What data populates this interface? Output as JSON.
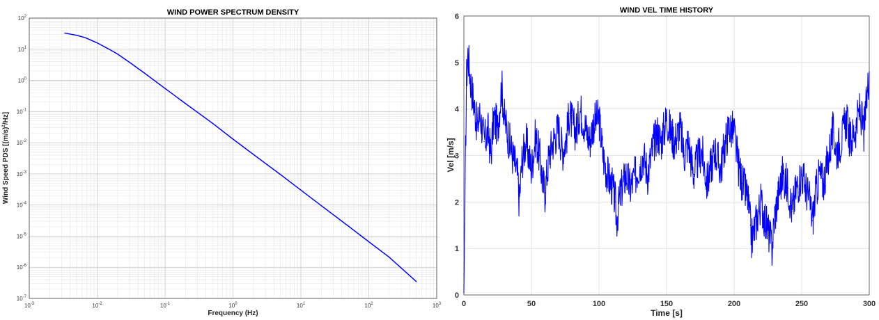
{
  "chart_data": [
    {
      "type": "line",
      "title": "WIND POWER SPECTRUM DENSITY",
      "xlabel": "Frequency (Hz)",
      "ylabel": "Wind Speed PDS [(m/s)^2/Hz]",
      "ylabel_parts": [
        "Wind Speed PDS [(m/s)",
        "2",
        "/Hz]"
      ],
      "xscale": "log",
      "yscale": "log",
      "xlim": [
        0.001,
        1000
      ],
      "ylim": [
        1e-07,
        100
      ],
      "grid": true,
      "minor_grid": true,
      "xtick_exponents": [
        -3,
        -2,
        -1,
        0,
        1,
        2,
        3
      ],
      "ytick_exponents": [
        -7,
        -6,
        -5,
        -4,
        -3,
        -2,
        -1,
        0,
        1,
        2
      ],
      "tick_base": "10",
      "color": "#0000ff",
      "series": [
        {
          "x": [
            0.00333,
            0.005,
            0.0067,
            0.01,
            0.015,
            0.02,
            0.03,
            0.05,
            0.1,
            0.2,
            0.5,
            1,
            2,
            5,
            10,
            20,
            50,
            100,
            200,
            500
          ],
          "y": [
            33,
            28,
            23.5,
            16,
            10,
            7,
            3.8,
            1.7,
            0.55,
            0.18,
            0.042,
            0.013,
            0.0042,
            0.00095,
            0.0003,
            9.5e-05,
            2.1e-05,
            6.6e-06,
            2.1e-06,
            3.5e-07
          ]
        }
      ]
    },
    {
      "type": "line",
      "title": "WIND VEL TIME HISTORY",
      "xlabel": "Time [s]",
      "ylabel": "Vel [m/s]",
      "xlim": [
        0,
        300
      ],
      "ylim": [
        0,
        6
      ],
      "xticks": [
        0,
        50,
        100,
        150,
        200,
        250,
        300
      ],
      "yticks": [
        0,
        1,
        2,
        3,
        4,
        5,
        6
      ],
      "grid": true,
      "color": "#0000ff",
      "series": [
        {
          "x": [
            0,
            1,
            2,
            3,
            5,
            8,
            10,
            12,
            15,
            18,
            20,
            22,
            25,
            28,
            30,
            33,
            36,
            38,
            40,
            41,
            43,
            46,
            50,
            53,
            56,
            58,
            60,
            63,
            66,
            70,
            73,
            76,
            78,
            80,
            83,
            86,
            90,
            93,
            96,
            100,
            103,
            106,
            110,
            112,
            113,
            116,
            120,
            123,
            126,
            130,
            133,
            136,
            140,
            143,
            146,
            150,
            153,
            156,
            160,
            163,
            166,
            170,
            173,
            176,
            180,
            183,
            186,
            190,
            193,
            196,
            200,
            203,
            206,
            210,
            212,
            213,
            215,
            218,
            220,
            223,
            226,
            228,
            230,
            233,
            236,
            240,
            243,
            246,
            250,
            253,
            256,
            258,
            260,
            263,
            266,
            270,
            273,
            276,
            280,
            283,
            286,
            290,
            293,
            296,
            300
          ],
          "y": [
            0.05,
            2.5,
            4.7,
            5.2,
            4.6,
            4.0,
            3.6,
            3.9,
            3.3,
            3.5,
            3.0,
            3.8,
            3.6,
            4.5,
            3.8,
            3.4,
            3.0,
            2.8,
            2.5,
            2.0,
            2.9,
            3.3,
            2.7,
            3.4,
            3.0,
            2.5,
            2.2,
            3.0,
            3.3,
            3.6,
            3.1,
            3.4,
            3.9,
            3.7,
            3.5,
            4.0,
            3.6,
            3.3,
            3.7,
            3.8,
            3.0,
            2.6,
            2.3,
            2.0,
            1.6,
            2.2,
            2.6,
            2.3,
            2.5,
            2.8,
            3.0,
            2.6,
            3.2,
            3.5,
            3.3,
            3.8,
            3.5,
            3.3,
            3.6,
            3.0,
            3.3,
            2.6,
            2.9,
            3.1,
            2.4,
            2.8,
            3.1,
            2.7,
            3.2,
            3.6,
            3.5,
            2.8,
            2.4,
            2.1,
            1.5,
            1.2,
            1.4,
            1.8,
            2.0,
            1.6,
            1.3,
            1.0,
            1.7,
            2.2,
            2.6,
            2.3,
            1.8,
            2.3,
            2.6,
            2.3,
            2.0,
            1.6,
            2.1,
            2.6,
            2.4,
            3.0,
            3.5,
            3.1,
            3.4,
            3.8,
            3.3,
            3.6,
            4.0,
            3.5,
            4.8
          ]
        }
      ]
    }
  ]
}
